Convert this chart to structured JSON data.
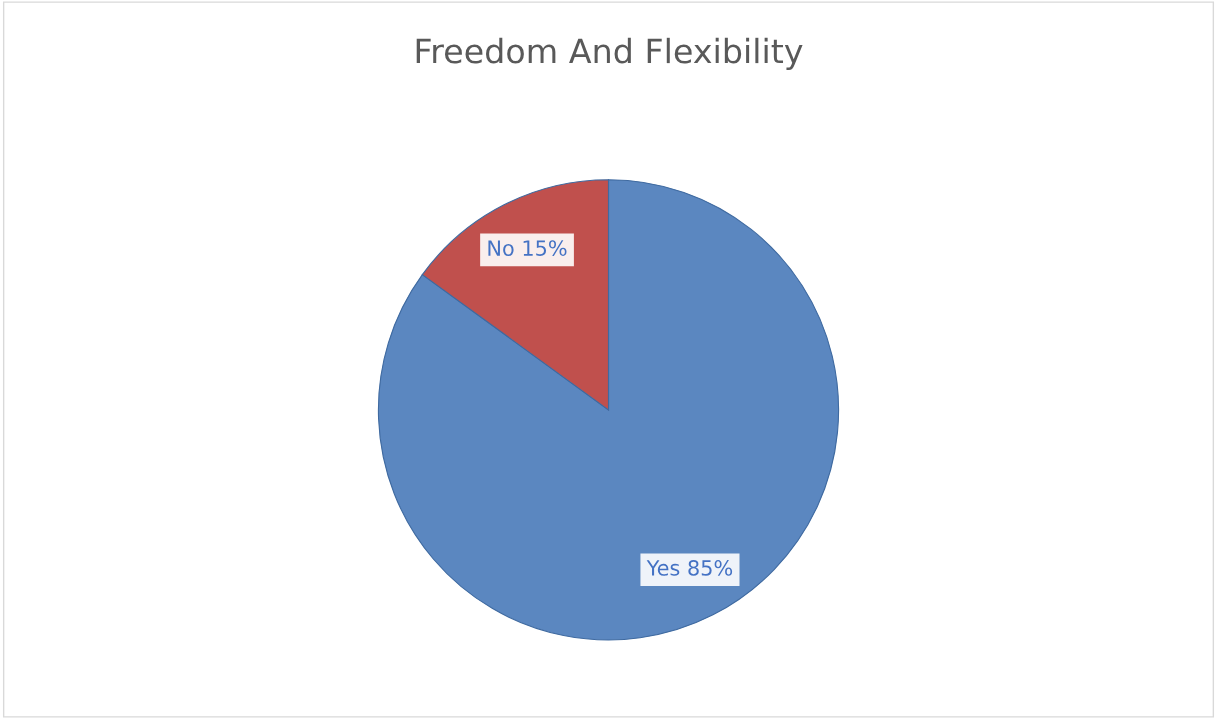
{
  "chart_data": {
    "type": "pie",
    "title": "Freedom And Flexibility",
    "categories": [
      "Yes",
      "No"
    ],
    "values": [
      85,
      15
    ],
    "colors": [
      "#5b87c0",
      "#c0504d"
    ],
    "value_labels": [
      "85%",
      "15%"
    ]
  }
}
